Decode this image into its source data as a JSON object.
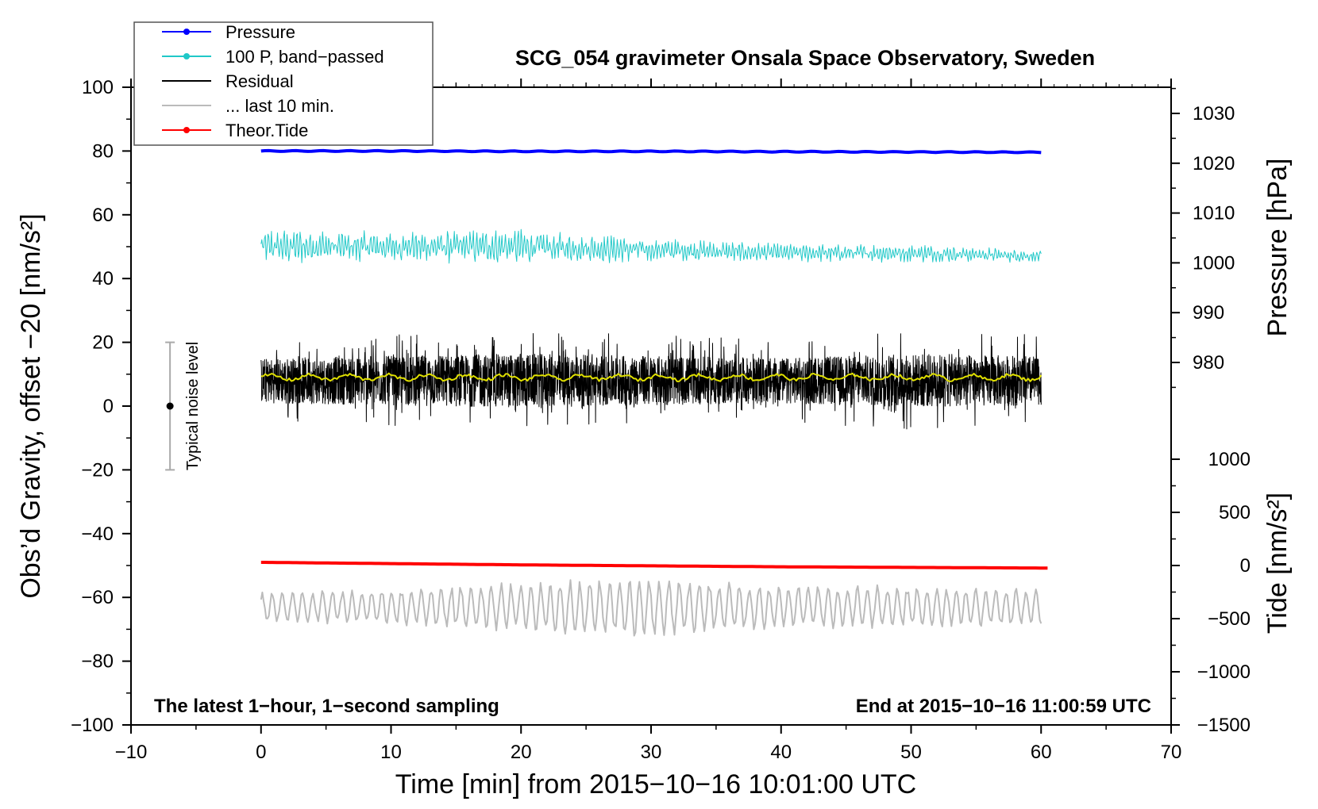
{
  "chart_data": {
    "type": "line",
    "title": "SCG_054 gravimeter Onsala Space Observatory, Sweden",
    "xlabel": "Time [min] from 2015−10−16 10:01:00 UTC",
    "ylabel_left": "Obs’d Gravity, offset −20 [nm/s²]",
    "ylabel_right_pressure": "Pressure [hPa]",
    "ylabel_right_tide": "Tide [nm/s²]",
    "xlim": [
      -10,
      70
    ],
    "ylim": [
      -100,
      100
    ],
    "x_ticks": [
      "−10",
      "0",
      "10",
      "20",
      "30",
      "40",
      "50",
      "60",
      "70"
    ],
    "y_ticks": [
      "−100",
      "−80",
      "−60",
      "−40",
      "−20",
      "0",
      "20",
      "40",
      "60",
      "80",
      "100"
    ],
    "pressure_ticks": [
      "980",
      "990",
      "1000",
      "1010",
      "1020",
      "1030"
    ],
    "tide_ticks": [
      "−1500",
      "−1000",
      "−500",
      "0",
      "500",
      "1000"
    ],
    "note_left": "The latest 1−hour, 1−second sampling",
    "note_right": "End at 2015−10−16 11:00:59 UTC",
    "noise_label": "Typical noise level",
    "noise_bar": {
      "x": -7,
      "center": 0,
      "half_range": 20
    },
    "legend_position": "top-left",
    "legend": [
      {
        "name": "Pressure",
        "color": "#0000ff",
        "marker": true
      },
      {
        "name": "100 P, band−passed",
        "color": "#20c8c8",
        "marker": true
      },
      {
        "name": "Residual",
        "color": "#000000",
        "marker": false
      },
      {
        "name": "... last 10 min.",
        "color": "#bbbbbb",
        "marker": false
      },
      {
        "name": "Theor.Tide",
        "color": "#ff0000",
        "marker": true
      }
    ],
    "series": [
      {
        "key": "pressure",
        "color": "#0000ff",
        "x": [
          0,
          10,
          20,
          30,
          40,
          50,
          60
        ],
        "values": [
          80.0,
          80.0,
          79.9,
          79.9,
          79.8,
          79.7,
          79.6
        ]
      },
      {
        "key": "band_passed",
        "color": "#20c8c8",
        "x": [
          0,
          10,
          20,
          30,
          40,
          50,
          60
        ],
        "values": [
          50,
          50,
          50,
          49,
          48,
          48,
          47
        ],
        "noise_amp": [
          6,
          5,
          6,
          4,
          3,
          3,
          2
        ]
      },
      {
        "key": "residual",
        "color": "#000000",
        "x": [
          0,
          10,
          20,
          30,
          40,
          50,
          60
        ],
        "values": [
          8,
          8,
          8,
          8,
          8,
          8,
          8
        ],
        "noise_amp": [
          10,
          11,
          12,
          11,
          10,
          12,
          11
        ]
      },
      {
        "key": "residual_smoothed",
        "color": "#e0e000",
        "x": [
          0,
          10,
          20,
          30,
          40,
          50,
          60
        ],
        "values": [
          9,
          9,
          9,
          9,
          9,
          9,
          9
        ]
      },
      {
        "key": "last_10_min",
        "color": "#bbbbbb",
        "x": [
          0,
          10,
          20,
          30,
          40,
          50,
          60
        ],
        "values": [
          -63,
          -63,
          -63,
          -63,
          -63,
          -63,
          -63
        ],
        "noise_amp": [
          5,
          6,
          8,
          10,
          7,
          7,
          6
        ]
      },
      {
        "key": "theor_tide",
        "color": "#ff0000",
        "x": [
          0,
          10,
          20,
          30,
          40,
          50,
          60.5
        ],
        "values": [
          -49.0,
          -49.4,
          -49.8,
          -50.1,
          -50.4,
          -50.6,
          -50.8
        ]
      }
    ]
  }
}
